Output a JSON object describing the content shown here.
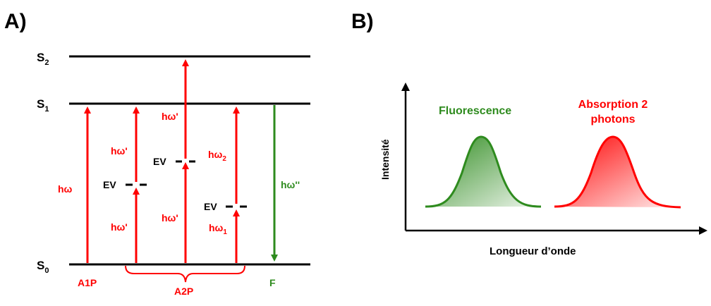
{
  "panel_a": {
    "label": "A)",
    "levels": {
      "s0": "S0",
      "s1": "S1",
      "s2": "S2"
    },
    "level_subscripts": {
      "s0": "0",
      "s1": "1",
      "s2": "2"
    },
    "arrows": {
      "a1p_photon": "hω",
      "a2p1_lower_photon": "hω'",
      "a2p1_upper_photon": "hω'",
      "a2p2_lower_photon": "hω'",
      "a2p2_upper_photon": "hω'",
      "a2p3_lower_photon_base": "hω",
      "a2p3_lower_photon_sub": "1",
      "a2p3_upper_photon_base": "hω",
      "a2p3_upper_photon_sub": "2",
      "fluorescence_photon": "hω''"
    },
    "virtual_states": [
      "EV",
      "EV",
      "EV"
    ],
    "process_labels": {
      "a1p": "A1P",
      "a2p": "A2P",
      "f": "F"
    }
  },
  "panel_b": {
    "label": "B)",
    "ylabel": "Intensité",
    "xlabel": "Longueur d’onde",
    "fluorescence_label": "Fluorescence",
    "absorption_label_line1": "Absorption 2",
    "absorption_label_line2": "photons"
  },
  "colors": {
    "red": "#ff0000",
    "green": "#2e8b1e",
    "black": "#000000"
  }
}
